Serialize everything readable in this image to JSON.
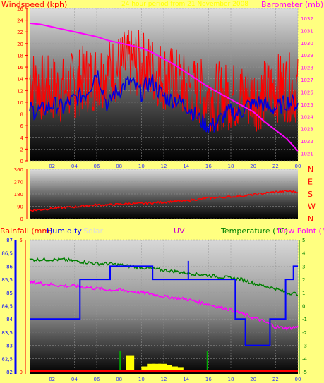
{
  "colors": {
    "background": "#ffff80",
    "windspeed": "#ff0000",
    "gust_avg": "#0000dd",
    "barometer": "#ff00ff",
    "direction": "#ff0000",
    "rainfall": "#ff0000",
    "humidity": "#0000ff",
    "solar": "#dddddd",
    "uv": "#cc00cc",
    "temperature": "#008000",
    "dew_point": "#ff00ff",
    "title": "#ffff00"
  },
  "chart_data": [
    {
      "type": "line",
      "panel": "wind",
      "title": "24 hour period from 21 November 2008",
      "left_axis_label": "Windspeed (kph)",
      "right_axis_label": "Barometer (mb)",
      "x_ticks": [
        "02",
        "04",
        "06",
        "08",
        "10",
        "12",
        "14",
        "16",
        "18",
        "20",
        "22",
        "00"
      ],
      "left_ticks": [
        "0",
        "2",
        "4",
        "6",
        "8",
        "10",
        "12",
        "14",
        "16",
        "18",
        "20",
        "22",
        "24",
        "26"
      ],
      "right_ticks": [
        "1021",
        "1022",
        "1023",
        "1024",
        "1025",
        "1026",
        "1027",
        "1028",
        "1029",
        "1030",
        "1031",
        "1032"
      ],
      "ylim_left": [
        0,
        26
      ],
      "ylim_right": [
        1020.4,
        1032.8
      ],
      "grid": true,
      "series": [
        {
          "axis": "left",
          "points": [
            [
              0,
              14
            ],
            [
              0.5,
              13
            ],
            [
              1,
              12.5
            ],
            [
              1.5,
              12
            ],
            [
              2,
              12.5
            ],
            [
              2.5,
              12
            ],
            [
              3,
              12
            ],
            [
              3.5,
              12.5
            ],
            [
              4,
              13
            ],
            [
              4.5,
              13.5
            ],
            [
              5,
              14
            ],
            [
              5.5,
              14
            ],
            [
              6,
              14.5
            ],
            [
              6.5,
              15
            ],
            [
              7,
              15
            ],
            [
              7.5,
              15.5
            ],
            [
              8,
              16
            ],
            [
              8.5,
              16.5
            ],
            [
              9,
              16.5
            ],
            [
              9.5,
              16.5
            ],
            [
              10,
              16.5
            ],
            [
              10.5,
              16
            ],
            [
              11,
              15.5
            ],
            [
              11.5,
              15
            ],
            [
              12,
              14.5
            ],
            [
              12.5,
              14
            ],
            [
              13,
              13.5
            ],
            [
              13.5,
              13
            ],
            [
              14,
              12.5
            ],
            [
              14.5,
              12
            ],
            [
              15,
              12
            ],
            [
              15.5,
              11.5
            ],
            [
              16,
              11
            ],
            [
              16.5,
              11
            ],
            [
              17,
              11
            ],
            [
              17.5,
              11
            ],
            [
              18,
              11
            ],
            [
              18.5,
              11
            ],
            [
              19,
              11
            ],
            [
              19.5,
              11
            ],
            [
              20,
              11
            ],
            [
              20.5,
              11
            ],
            [
              21,
              11.5
            ],
            [
              21.5,
              12
            ],
            [
              22,
              12.5
            ],
            [
              22.5,
              12.5
            ],
            [
              23,
              12.5
            ],
            [
              23.5,
              12.5
            ],
            [
              24,
              12
            ]
          ]
        },
        {
          "axis": "left",
          "points": [
            [
              0,
              9
            ],
            [
              0.5,
              8.5
            ],
            [
              1,
              8.5
            ],
            [
              1.5,
              9
            ],
            [
              2,
              9.5
            ],
            [
              2.5,
              9.5
            ],
            [
              3,
              9
            ],
            [
              3.5,
              10
            ],
            [
              4,
              10.5
            ],
            [
              4.5,
              11
            ],
            [
              5,
              11.5
            ],
            [
              5.5,
              13
            ],
            [
              6,
              15.5
            ],
            [
              6.5,
              12.5
            ],
            [
              7,
              9
            ],
            [
              7.5,
              11.5
            ],
            [
              8,
              12
            ],
            [
              8.5,
              13
            ],
            [
              9,
              13.5
            ],
            [
              9.5,
              12.5
            ],
            [
              10,
              11.5
            ],
            [
              10.5,
              13
            ],
            [
              11,
              13.5
            ],
            [
              11.5,
              12
            ],
            [
              12,
              11
            ],
            [
              12.5,
              10.5
            ],
            [
              13,
              10.5
            ],
            [
              13.5,
              10
            ],
            [
              14,
              9.5
            ],
            [
              14.5,
              8.5
            ],
            [
              15,
              7.5
            ],
            [
              15.5,
              6.5
            ],
            [
              16,
              6
            ],
            [
              16.5,
              6
            ],
            [
              17,
              7
            ],
            [
              17.5,
              8
            ],
            [
              18,
              8.5
            ],
            [
              18.5,
              8
            ],
            [
              19,
              8.5
            ],
            [
              19.5,
              9.5
            ],
            [
              20,
              9.5
            ],
            [
              20.5,
              10
            ],
            [
              21,
              9.5
            ],
            [
              21.5,
              9
            ],
            [
              22,
              9
            ],
            [
              22.5,
              9.5
            ],
            [
              23,
              10
            ],
            [
              23.5,
              10
            ],
            [
              24,
              9.5
            ]
          ]
        },
        {
          "axis": "right",
          "points": [
            [
              0,
              1031.6
            ],
            [
              1,
              1031.5
            ],
            [
              2,
              1031.3
            ],
            [
              3,
              1031.1
            ],
            [
              4,
              1030.9
            ],
            [
              5,
              1030.7
            ],
            [
              6,
              1030.5
            ],
            [
              7,
              1030.2
            ],
            [
              8,
              1030.0
            ],
            [
              9,
              1029.8
            ],
            [
              10,
              1029.6
            ],
            [
              11,
              1029.2
            ],
            [
              12,
              1028.7
            ],
            [
              13,
              1028.2
            ],
            [
              14,
              1027.6
            ],
            [
              15,
              1027.0
            ],
            [
              16,
              1026.4
            ],
            [
              17,
              1025.9
            ],
            [
              18,
              1025.4
            ],
            [
              19,
              1024.9
            ],
            [
              20,
              1024.4
            ],
            [
              21,
              1023.6
            ],
            [
              22,
              1022.9
            ],
            [
              23,
              1022.2
            ],
            [
              24,
              1021.2
            ]
          ]
        }
      ]
    },
    {
      "type": "line",
      "panel": "direction",
      "left_ticks": [
        "0",
        "90",
        "180",
        "270",
        "360"
      ],
      "right_ticks": [
        "N",
        "W",
        "S",
        "E",
        "N"
      ],
      "ylim": [
        0,
        360
      ],
      "series": [
        {
          "points": [
            [
              0,
              60
            ],
            [
              1,
              65
            ],
            [
              2,
              75
            ],
            [
              3,
              80
            ],
            [
              4,
              85
            ],
            [
              5,
              95
            ],
            [
              6,
              100
            ],
            [
              7,
              100
            ],
            [
              8,
              105
            ],
            [
              9,
              110
            ],
            [
              10,
              110
            ],
            [
              11,
              115
            ],
            [
              12,
              120
            ],
            [
              13,
              125
            ],
            [
              14,
              130
            ],
            [
              15,
              140
            ],
            [
              16,
              150
            ],
            [
              17,
              155
            ],
            [
              18,
              160
            ],
            [
              19,
              165
            ],
            [
              20,
              175
            ],
            [
              21,
              185
            ],
            [
              22,
              195
            ],
            [
              23,
              200
            ],
            [
              24,
              195
            ]
          ]
        }
      ]
    },
    {
      "type": "line",
      "panel": "climate",
      "left_axis_label": "Rainfall (mm)",
      "humidity_label": "Humidity",
      "solar_label": "Solar",
      "uv_label": "UV",
      "right_axis_label": "Temperature (°C)",
      "dew_point_label": "Dew Point (°C)",
      "rain_ticks": [
        "0",
        "5"
      ],
      "humidity_ticks": [
        "82",
        "82,5",
        "83",
        "83,5",
        "84",
        "84,5",
        "85",
        "85,5",
        "86",
        "86,5",
        "87"
      ],
      "temp_ticks": [
        "-5",
        "-4",
        "-3",
        "-2",
        "-1",
        "0",
        "1",
        "2",
        "3",
        "4",
        "5"
      ],
      "ylim_humidity": [
        82,
        87
      ],
      "ylim_temp": [
        -5,
        5
      ],
      "ylim_rain": [
        0,
        5
      ],
      "grid": true,
      "series": [
        {
          "axis": "humidity",
          "points": [
            [
              0,
              84
            ],
            [
              4.5,
              84
            ],
            [
              4.5,
              85.5
            ],
            [
              7.2,
              85.5
            ],
            [
              7.2,
              86
            ],
            [
              11,
              86
            ],
            [
              11,
              85.5
            ],
            [
              14.2,
              85.5
            ],
            [
              14.2,
              86.2
            ],
            [
              14.2,
              85.5
            ],
            [
              18.4,
              85.5
            ],
            [
              18.4,
              84
            ],
            [
              19.3,
              84
            ],
            [
              19.3,
              83
            ],
            [
              21.5,
              83
            ],
            [
              21.5,
              84
            ],
            [
              22.9,
              84
            ],
            [
              22.9,
              85.5
            ],
            [
              23.6,
              85.5
            ],
            [
              23.6,
              86
            ],
            [
              24,
              86
            ]
          ]
        },
        {
          "axis": "temperature",
          "points": [
            [
              0,
              3.5
            ],
            [
              1,
              3.5
            ],
            [
              2,
              3.5
            ],
            [
              3,
              3.5
            ],
            [
              4,
              3.4
            ],
            [
              5,
              3.3
            ],
            [
              6,
              3.2
            ],
            [
              7,
              3.2
            ],
            [
              8,
              3.1
            ],
            [
              9,
              3
            ],
            [
              10,
              2.9
            ],
            [
              11,
              2.8
            ],
            [
              12,
              2.7
            ],
            [
              13,
              2.6
            ],
            [
              14,
              2.5
            ],
            [
              15,
              2.4
            ],
            [
              16,
              2.3
            ],
            [
              17,
              2.2
            ],
            [
              18,
              2.1
            ],
            [
              19,
              2
            ],
            [
              20,
              1.7
            ],
            [
              21,
              1.5
            ],
            [
              22,
              1.3
            ],
            [
              23,
              1
            ],
            [
              24,
              0.9
            ]
          ]
        },
        {
          "axis": "temperature",
          "points": [
            [
              0,
              1.8
            ],
            [
              1,
              1.7
            ],
            [
              2,
              1.6
            ],
            [
              3,
              1.5
            ],
            [
              4,
              1.5
            ],
            [
              5,
              1.4
            ],
            [
              6,
              1.3
            ],
            [
              7,
              1.2
            ],
            [
              8,
              1.2
            ],
            [
              9,
              1.1
            ],
            [
              10,
              1
            ],
            [
              11,
              0.9
            ],
            [
              12,
              0.7
            ],
            [
              13,
              0.6
            ],
            [
              14,
              0.5
            ],
            [
              15,
              0.3
            ],
            [
              16,
              0.1
            ],
            [
              17,
              -0.1
            ],
            [
              18,
              -0.3
            ],
            [
              19,
              -0.6
            ],
            [
              20,
              -0.9
            ],
            [
              21,
              -1.2
            ],
            [
              22,
              -1.6
            ],
            [
              23,
              -1.7
            ],
            [
              24,
              -1.6
            ]
          ]
        },
        {
          "axis": "rain",
          "points": [
            [
              0,
              0
            ],
            [
              24,
              0
            ]
          ]
        }
      ],
      "solar_bars": [
        [
          8.6,
          0.6
        ],
        [
          10,
          0.2
        ],
        [
          10.5,
          0.3
        ],
        [
          11,
          0.3
        ],
        [
          11.5,
          0.3
        ],
        [
          12,
          0.25
        ],
        [
          12.5,
          0.2
        ],
        [
          13,
          0.15
        ]
      ],
      "uv_spikes": [
        [
          8.1,
          0.8
        ],
        [
          15.9,
          0.8
        ]
      ]
    }
  ]
}
